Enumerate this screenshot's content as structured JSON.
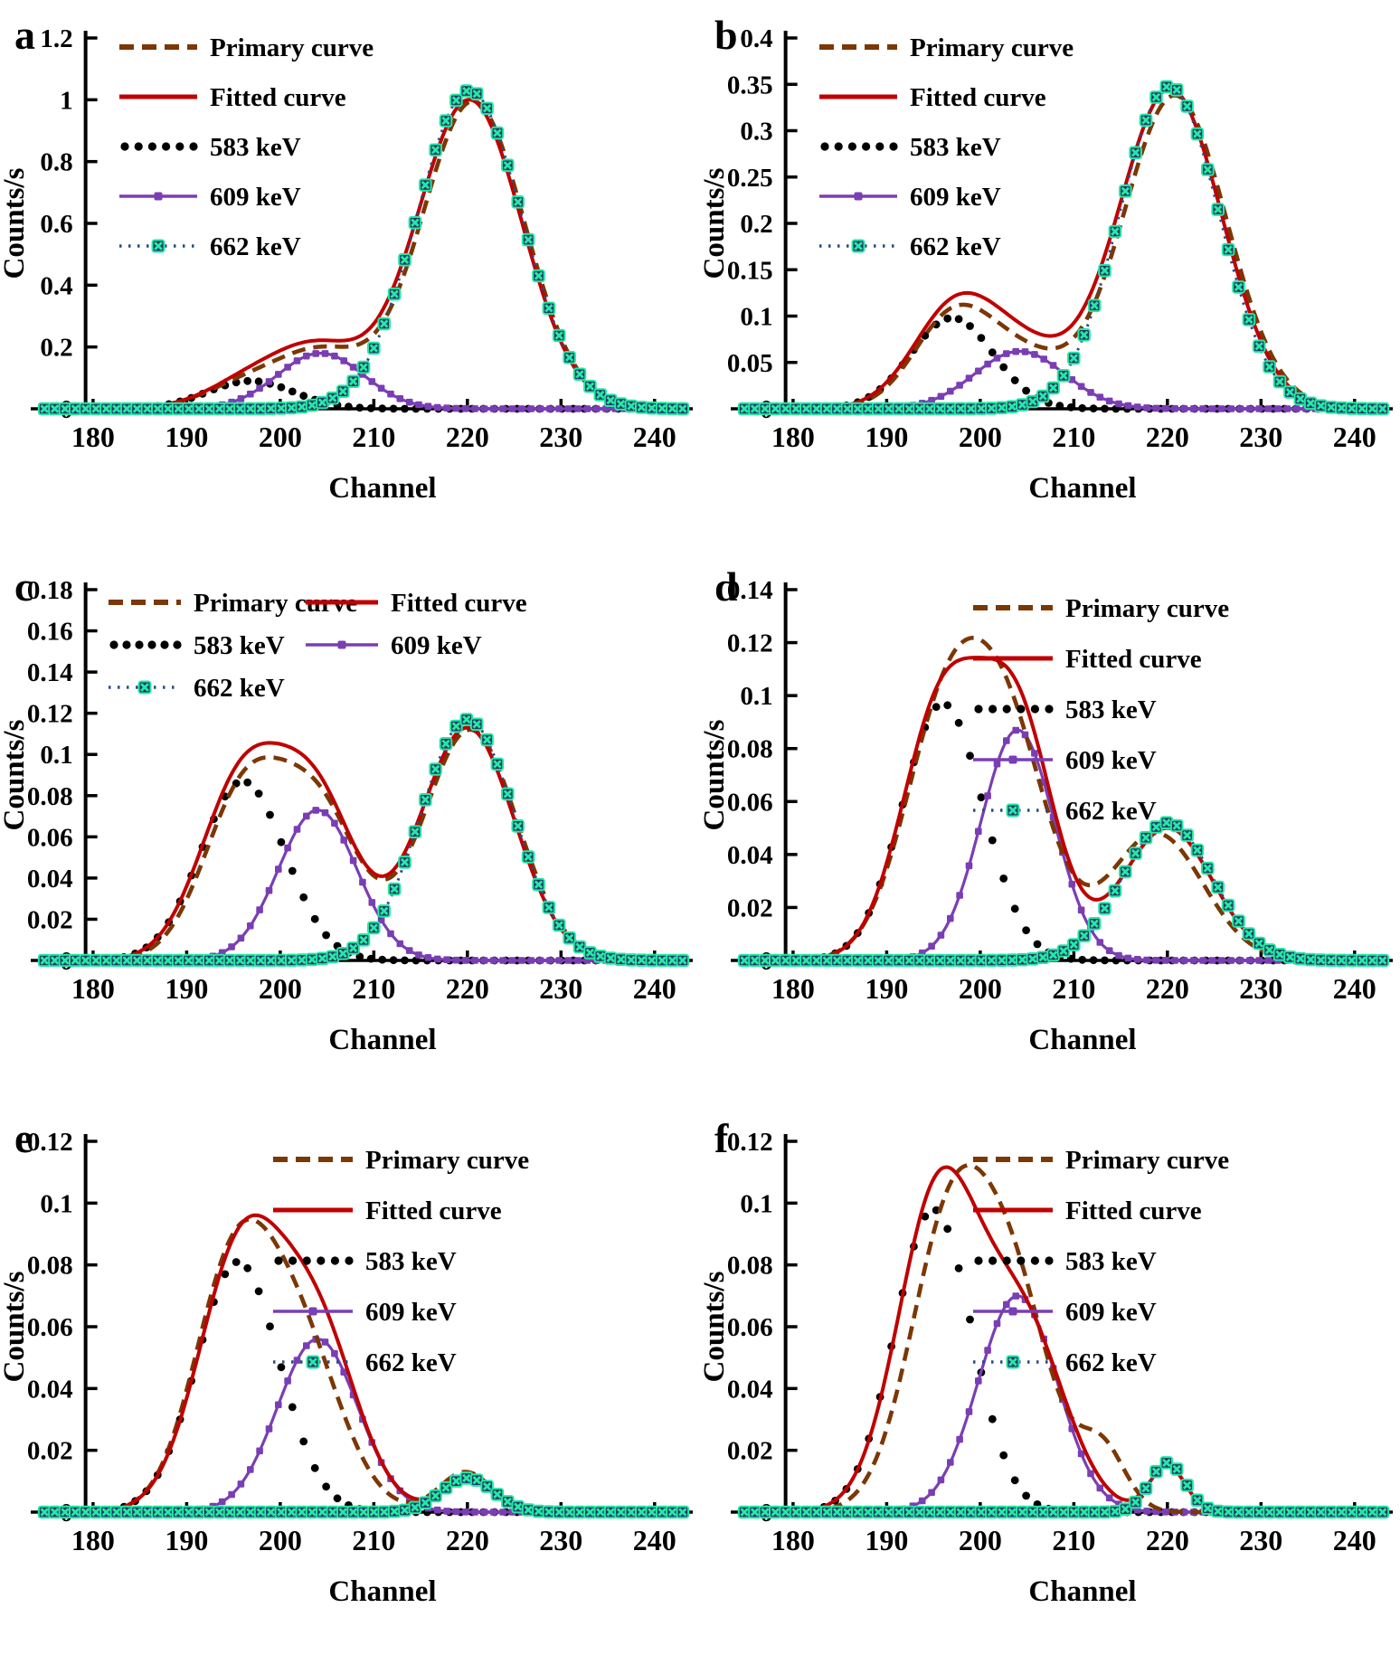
{
  "page": {
    "background": "#FFFFFF"
  },
  "series_styles": {
    "primary": {
      "label": "Primary curve",
      "color": "#7B3704",
      "line": "dashed"
    },
    "fitted": {
      "label": "Fitted curve",
      "color": "#C00000",
      "line": "solid"
    },
    "p583": {
      "label": "583 keV",
      "color": "#000000",
      "line": "round-dots"
    },
    "p609": {
      "label": "609 keV",
      "color": "#7A3EB4",
      "line": "solid-with-square-markers"
    },
    "p662": {
      "label": "662 keV",
      "line_color": "#2B4B86",
      "marker_fill": "#1E3A66",
      "marker_accent": "#26E8A4",
      "line": "dotted-with-xsquare-markers"
    }
  },
  "chart_data": [
    {
      "panel": "a",
      "type": "line",
      "xlabel": "Channel",
      "ylabel": "Counts/s",
      "x_ticks": [
        180,
        190,
        200,
        210,
        220,
        230,
        240
      ],
      "xlim": [
        180,
        240
      ],
      "y_max": 1.2,
      "y_tick_labels": [
        "0",
        "0.2",
        "0.4",
        "0.6",
        "0.8",
        "1",
        "1.2"
      ],
      "legend_position": "top-left",
      "legend_order": [
        "primary",
        "fitted",
        "p583",
        "p609",
        "p662"
      ],
      "curve_model": "sum_of_gaussians",
      "component_format": "[amplitude_counts_per_s, center_channel, sigma_channels]",
      "series": {
        "primary": {
          "gaussians": [
            [
              0.08,
              196.5,
              4.6
            ],
            [
              0.17,
              204.6,
              4.6
            ],
            [
              0.995,
              220.6,
              5.5
            ]
          ]
        },
        "fitted": {
          "gaussians": [
            [
              0.09,
              196.8,
              4.6
            ],
            [
              0.18,
              204.3,
              4.6
            ],
            [
              1.0,
              220.2,
              5.6
            ]
          ]
        },
        "p583": {
          "gaussians": [
            [
              0.09,
              196.8,
              4.6
            ]
          ]
        },
        "p609": {
          "gaussians": [
            [
              0.18,
              204.3,
              4.6
            ]
          ]
        },
        "p662": {
          "gaussians": [
            [
              1.03,
              220.2,
              5.6
            ]
          ]
        }
      }
    },
    {
      "panel": "b",
      "type": "line",
      "xlabel": "Channel",
      "ylabel": "Counts/s",
      "x_ticks": [
        180,
        190,
        200,
        210,
        220,
        230,
        240
      ],
      "xlim": [
        180,
        240
      ],
      "y_max": 0.4,
      "y_tick_labels": [
        "0",
        "0.05",
        "0.1",
        "0.15",
        "0.2",
        "0.25",
        "0.3",
        "0.35",
        "0.4"
      ],
      "legend_position": "top-left",
      "legend_order": [
        "primary",
        "fitted",
        "p583",
        "p609",
        "p662"
      ],
      "curve_model": "sum_of_gaussians",
      "component_format": "[amplitude_counts_per_s, center_channel, sigma_channels]",
      "series": {
        "primary": {
          "gaussians": [
            [
              0.094,
              197.0,
              4.2
            ],
            [
              0.052,
              204.5,
              4.8
            ],
            [
              0.338,
              220.8,
              5.5
            ]
          ]
        },
        "fitted": {
          "gaussians": [
            [
              0.098,
              197.0,
              4.4
            ],
            [
              0.062,
              204.2,
              5.0
            ],
            [
              0.345,
              220.3,
              5.5
            ]
          ]
        },
        "p583": {
          "gaussians": [
            [
              0.098,
              197.0,
              4.4
            ]
          ]
        },
        "p609": {
          "gaussians": [
            [
              0.062,
              204.2,
              4.8
            ]
          ]
        },
        "p662": {
          "gaussians": [
            [
              0.348,
              220.2,
              5.3
            ]
          ]
        }
      }
    },
    {
      "panel": "c",
      "type": "line",
      "xlabel": "Channel",
      "ylabel": "Counts/s",
      "x_ticks": [
        180,
        190,
        200,
        210,
        220,
        230,
        240
      ],
      "xlim": [
        180,
        240
      ],
      "y_max": 0.18,
      "y_tick_labels": [
        "0",
        "0.02",
        "0.04",
        "0.06",
        "0.08",
        "0.1",
        "0.12",
        "0.14",
        "0.16",
        "0.18"
      ],
      "legend_position": "two-column-top",
      "legend_columns": [
        [
          "primary",
          "p583",
          "p662"
        ],
        [
          "fitted",
          "p609"
        ]
      ],
      "curve_model": "sum_of_gaussians",
      "component_format": "[amplitude_counts_per_s, center_channel, sigma_channels]",
      "series": {
        "primary": {
          "gaussians": [
            [
              0.082,
              196.3,
              4.4
            ],
            [
              0.068,
              204.3,
              4.2
            ],
            [
              0.112,
              220.3,
              5.0
            ]
          ]
        },
        "fitted": {
          "gaussians": [
            [
              0.087,
              196.0,
              4.5
            ],
            [
              0.073,
              204.0,
              4.2
            ],
            [
              0.113,
              220.0,
              5.0
            ]
          ]
        },
        "p583": {
          "gaussians": [
            [
              0.087,
              196.0,
              4.5
            ]
          ]
        },
        "p609": {
          "gaussians": [
            [
              0.073,
              204.0,
              4.2
            ]
          ]
        },
        "p662": {
          "gaussians": [
            [
              0.117,
              220.0,
              5.0
            ]
          ]
        }
      }
    },
    {
      "panel": "d",
      "type": "line",
      "xlabel": "Channel",
      "ylabel": "Counts/s",
      "x_ticks": [
        180,
        190,
        200,
        210,
        220,
        230,
        240
      ],
      "xlim": [
        180,
        240
      ],
      "y_max": 0.14,
      "y_tick_labels": [
        "0",
        "0.02",
        "0.04",
        "0.06",
        "0.08",
        "0.1",
        "0.12",
        "0.14"
      ],
      "legend_position": "top-right",
      "legend_order": [
        "primary",
        "fitted",
        "p583",
        "p609",
        "p662"
      ],
      "curve_model": "sum_of_gaussians",
      "component_format": "[amplitude_counts_per_s, center_channel, sigma_channels]",
      "series": {
        "primary": {
          "gaussians": [
            [
              0.09,
              196.3,
              4.5
            ],
            [
              0.075,
              203.2,
              4.3
            ],
            [
              0.048,
              218.8,
              5.0
            ]
          ]
        },
        "fitted": {
          "gaussians": [
            [
              0.097,
              196.0,
              4.3
            ],
            [
              0.087,
              204.0,
              3.9
            ],
            [
              0.05,
              220.0,
              4.8
            ]
          ]
        },
        "p583": {
          "gaussians": [
            [
              0.097,
              196.0,
              4.3
            ]
          ]
        },
        "p609": {
          "gaussians": [
            [
              0.087,
              204.0,
              3.9
            ]
          ]
        },
        "p662": {
          "gaussians": [
            [
              0.052,
              220.0,
              4.8
            ]
          ]
        }
      }
    },
    {
      "panel": "e",
      "type": "line",
      "xlabel": "Channel",
      "ylabel": "Counts/s",
      "x_ticks": [
        180,
        190,
        200,
        210,
        220,
        230,
        240
      ],
      "xlim": [
        180,
        240
      ],
      "y_max": 0.12,
      "y_tick_labels": [
        "0",
        "0.02",
        "0.04",
        "0.06",
        "0.08",
        "0.1",
        "0.12"
      ],
      "legend_position": "top-right",
      "legend_order": [
        "primary",
        "fitted",
        "p583",
        "p609",
        "p662"
      ],
      "curve_model": "sum_of_gaussians",
      "component_format": "[amplitude_counts_per_s, center_channel, sigma_channels]",
      "series": {
        "primary": {
          "gaussians": [
            [
              0.072,
              194.8,
              4.2
            ],
            [
              0.055,
              201.8,
              4.6
            ],
            [
              0.013,
              219.8,
              2.8
            ]
          ]
        },
        "fitted": {
          "gaussians": [
            [
              0.084,
              195.8,
              4.5
            ],
            [
              0.056,
              204.0,
              4.3
            ],
            [
              0.01,
              220.0,
              2.8
            ]
          ]
        },
        "p583": {
          "gaussians": [
            [
              0.081,
              195.5,
              4.4
            ]
          ]
        },
        "p609": {
          "gaussians": [
            [
              0.056,
              204.0,
              4.3
            ]
          ]
        },
        "p662": {
          "gaussians": [
            [
              0.011,
              220.0,
              2.8
            ]
          ]
        }
      }
    },
    {
      "panel": "f",
      "type": "line",
      "xlabel": "Channel",
      "ylabel": "Counts/s",
      "x_ticks": [
        180,
        190,
        200,
        210,
        220,
        230,
        240
      ],
      "xlim": [
        180,
        240
      ],
      "y_max": 0.12,
      "y_tick_labels": [
        "0",
        "0.02",
        "0.04",
        "0.06",
        "0.08",
        "0.1",
        "0.12"
      ],
      "legend_position": "top-right",
      "legend_order": [
        "primary",
        "fitted",
        "p583",
        "p609",
        "p662"
      ],
      "curve_model": "sum_of_gaussians",
      "component_format": "[amplitude_counts_per_s, center_channel, sigma_channels]",
      "series": {
        "primary": {
          "gaussians": [
            [
              0.095,
              197.0,
              4.4
            ],
            [
              0.058,
              204.0,
              4.0
            ],
            [
              0.02,
              213.0,
              2.5
            ]
          ]
        },
        "fitted": {
          "gaussians": [
            [
              0.102,
              195.5,
              4.3
            ],
            [
              0.06,
              204.5,
              4.5
            ],
            [
              0.015,
              220.0,
              1.9
            ]
          ]
        },
        "p583": {
          "gaussians": [
            [
              0.098,
              195.0,
              4.1
            ]
          ]
        },
        "p609": {
          "gaussians": [
            [
              0.07,
              204.0,
              4.2
            ]
          ]
        },
        "p662": {
          "gaussians": [
            [
              0.016,
              220.0,
              1.9
            ]
          ]
        }
      }
    }
  ]
}
